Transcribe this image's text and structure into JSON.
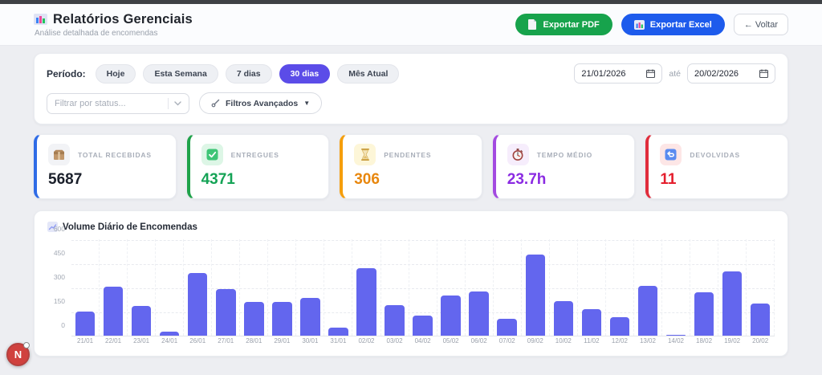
{
  "header": {
    "title": "Relatórios Gerenciais",
    "subtitle": "Análise detalhada de encomendas",
    "export_pdf_label": "Exportar PDF",
    "export_excel_label": "Exportar Excel",
    "back_label": "← Voltar",
    "export_pdf_color": "#17a34c",
    "export_excel_color": "#1d5bec",
    "title_icon": "bar-chart-icon",
    "pdf_icon": "document-icon",
    "excel_icon": "bar-chart-icon"
  },
  "filters": {
    "period_label": "Período:",
    "period_options": [
      "Hoje",
      "Esta Semana",
      "7 dias",
      "30 dias",
      "Mês Atual"
    ],
    "active_period": "30 dias",
    "active_period_color": "#5b4ce8",
    "date_from": "21/01/2026",
    "date_separator": "até",
    "date_to": "20/02/2026",
    "date_icon": "calendar-icon",
    "status_placeholder": "Filtrar por status...",
    "status_chevron_icon": "chevron-down-icon",
    "advanced_label": "Filtros Avançados",
    "advanced_icon": "wrench-icon",
    "advanced_caret": "▼"
  },
  "stats": [
    {
      "label": "TOTAL RECEBIDAS",
      "value": "5687",
      "accent": "#2e6be6",
      "value_color": "#1b202b",
      "icon": "package-icon",
      "icon_bg": "#f2f3f6"
    },
    {
      "label": "ENTREGUES",
      "value": "4371",
      "accent": "#1fa24a",
      "value_color": "#15a356",
      "icon": "check-icon",
      "icon_bg": "#ddf6e6"
    },
    {
      "label": "PENDENTES",
      "value": "306",
      "accent": "#f59e0b",
      "value_color": "#e8870e",
      "icon": "hourglass-icon",
      "icon_bg": "#fdf6d8"
    },
    {
      "label": "TEMPO MÉDIO",
      "value": "23.7h",
      "accent": "#a34ae0",
      "value_color": "#8b2be2",
      "icon": "stopwatch-icon",
      "icon_bg": "#f6edfc"
    },
    {
      "label": "DEVOLVIDAS",
      "value": "11",
      "accent": "#e02d3c",
      "value_color": "#e41e2d",
      "icon": "return-icon",
      "icon_bg": "#fde6e6"
    }
  ],
  "chart_data": {
    "type": "bar",
    "title": "Volume Diário de Encomendas",
    "title_icon": "trending-up-icon",
    "categories": [
      "21/01",
      "22/01",
      "23/01",
      "24/01",
      "26/01",
      "27/01",
      "28/01",
      "29/01",
      "30/01",
      "31/01",
      "02/02",
      "03/02",
      "04/02",
      "05/02",
      "06/02",
      "07/02",
      "09/02",
      "10/02",
      "11/02",
      "12/02",
      "13/02",
      "14/02",
      "18/02",
      "19/02",
      "20/02"
    ],
    "values": [
      150,
      305,
      185,
      25,
      390,
      290,
      210,
      210,
      235,
      50,
      420,
      190,
      125,
      250,
      275,
      105,
      505,
      215,
      165,
      115,
      310,
      5,
      270,
      400,
      200
    ],
    "xlabel": "",
    "ylabel": "",
    "ylim": [
      0,
      600
    ],
    "yticks": [
      0,
      150,
      300,
      450,
      600
    ],
    "bar_color": "#6366ee",
    "grid": true,
    "legend": "none"
  },
  "floating_badge": {
    "letter": "N"
  }
}
